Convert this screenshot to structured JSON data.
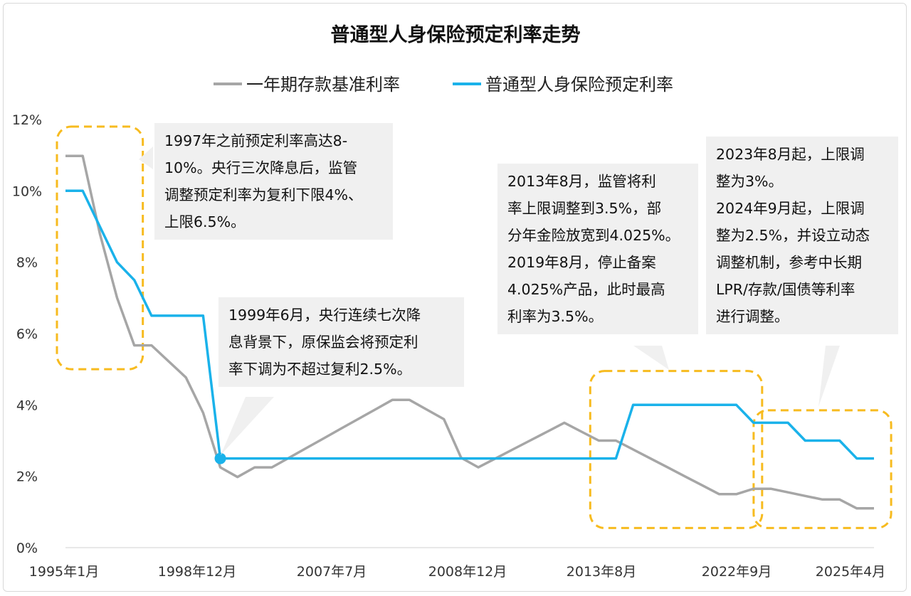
{
  "chart_data": {
    "type": "line",
    "title": "普通型人身保险预定利率走势",
    "xlabel": "",
    "ylabel": "",
    "x_tick_labels": [
      "1995年1月",
      "1998年12月",
      "2007年7月",
      "2008年12月",
      "2013年8月",
      "2022年9月",
      "2025年4月"
    ],
    "y_tick_labels": [
      "0%",
      "2%",
      "4%",
      "6%",
      "8%",
      "10%",
      "12%"
    ],
    "ylim": [
      0,
      12
    ],
    "grid": false,
    "legend_position": "top",
    "series": [
      {
        "name": "一年期存款基准利率",
        "color": "#a6a6a6",
        "points": [
          [
            0.0,
            10.98
          ],
          [
            1.0,
            10.98
          ],
          [
            2.0,
            8.8
          ],
          [
            3.0,
            7.0
          ],
          [
            4.0,
            5.67
          ],
          [
            5.0,
            5.67
          ],
          [
            6.0,
            5.22
          ],
          [
            7.0,
            4.77
          ],
          [
            8.0,
            3.78
          ],
          [
            9.0,
            2.25
          ],
          [
            10.0,
            1.98
          ],
          [
            11.0,
            2.25
          ],
          [
            12.0,
            2.25
          ],
          [
            13.0,
            2.52
          ],
          [
            14.0,
            2.79
          ],
          [
            15.0,
            3.06
          ],
          [
            16.0,
            3.33
          ],
          [
            17.0,
            3.6
          ],
          [
            18.0,
            3.87
          ],
          [
            19.0,
            4.14
          ],
          [
            20.0,
            4.14
          ],
          [
            21.0,
            3.87
          ],
          [
            22.0,
            3.6
          ],
          [
            23.0,
            2.52
          ],
          [
            24.0,
            2.25
          ],
          [
            25.0,
            2.5
          ],
          [
            26.0,
            2.75
          ],
          [
            27.0,
            3.0
          ],
          [
            28.0,
            3.25
          ],
          [
            29.0,
            3.5
          ],
          [
            30.0,
            3.25
          ],
          [
            31.0,
            3.0
          ],
          [
            32.0,
            3.0
          ],
          [
            33.0,
            2.75
          ],
          [
            34.0,
            2.5
          ],
          [
            35.0,
            2.25
          ],
          [
            36.0,
            2.0
          ],
          [
            37.0,
            1.75
          ],
          [
            38.0,
            1.5
          ],
          [
            39.0,
            1.5
          ],
          [
            40.0,
            1.65
          ],
          [
            41.0,
            1.65
          ],
          [
            42.0,
            1.55
          ],
          [
            43.0,
            1.45
          ],
          [
            44.0,
            1.35
          ],
          [
            45.0,
            1.35
          ],
          [
            46.0,
            1.1
          ],
          [
            47.0,
            1.1
          ]
        ]
      },
      {
        "name": "普通型人身保险预定利率",
        "color": "#1ab2ea",
        "points": [
          [
            0.0,
            10.0
          ],
          [
            1.0,
            10.0
          ],
          [
            2.0,
            9.0
          ],
          [
            3.0,
            8.0
          ],
          [
            4.0,
            7.5
          ],
          [
            5.0,
            6.5
          ],
          [
            7.0,
            6.5
          ],
          [
            8.0,
            6.5
          ],
          [
            9.0,
            2.5
          ],
          [
            20.0,
            2.5
          ],
          [
            32.0,
            2.5
          ],
          [
            33.0,
            4.0
          ],
          [
            39.0,
            4.0
          ],
          [
            40.0,
            3.5
          ],
          [
            42.0,
            3.5
          ],
          [
            43.0,
            3.0
          ],
          [
            45.0,
            3.0
          ],
          [
            46.0,
            2.5
          ],
          [
            47.0,
            2.5
          ]
        ]
      }
    ],
    "highlight_point": [
      9.0,
      2.5
    ],
    "highlight_regions": [
      {
        "x": [
          0,
          4
        ],
        "y": [
          5.0,
          11.8
        ]
      },
      {
        "x": [
          31,
          40
        ],
        "y": [
          0.55,
          4.95
        ]
      },
      {
        "x": [
          40.5,
          47.5
        ],
        "y": [
          0.55,
          3.85
        ]
      }
    ]
  },
  "annotations": [
    {
      "lines": [
        "1997年之前预定利率高达8-",
        "10%。央行三次降息后，监管",
        "调整预定利率为复利下限4%、",
        "上限6.5%。"
      ]
    },
    {
      "lines": [
        "1999年6月，央行连续七次降",
        "息背景下，原保监会将预定利",
        "率下调为不超过复利2.5%。"
      ]
    },
    {
      "lines": [
        "2013年8月，监管将利",
        "率上限调整到3.5%，部",
        "分年金险放宽到4.025%。",
        "2019年8月，停止备案",
        "4.025%产品，此时最高",
        "利率为3.5%。"
      ]
    },
    {
      "lines": [
        "2023年8月起，上限调",
        "整为3%。",
        "2024年9月起，上限调",
        "整为2.5%，并设立动态",
        "调整机制，参考中长期",
        "LPR/存款/国债等利率",
        "进行调整。"
      ]
    }
  ]
}
